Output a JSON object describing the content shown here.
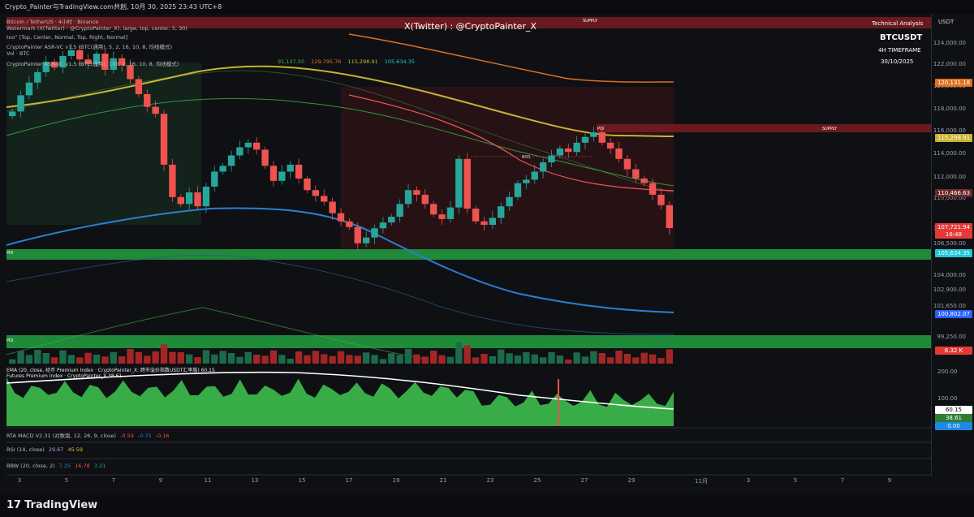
{
  "window_title": "Crypto_Painter与TradingView.com共創, 10月 30, 2025 23:43 UTC+8",
  "watermark": "X(Twitter) : @CryptoPainter_X",
  "header_right": {
    "line1": "Technical Analysis",
    "symbol": "BTCUSDT",
    "timeframe": "4H TIMEFRAME",
    "date": "30/10/2025"
  },
  "legend_lines": [
    "Bitcoin / TetherUS · 4小时 · Binance",
    "Watermark (X(Twitter) : @CryptoPainter_X), large, top, center, 5, 30)",
    "too\" [Top, Center, Normal, Top, Right, Normal]",
    "CryptoPainter ASR-VC v1.5 (BTC(通用), 5, 2, 16, 10, 8, 均线模式)",
    "Vol · BTC",
    "CryptoPainter ASR-VC v1.5 (BTC(通用), 100, 2, 16, 10, 8, 均线模式)"
  ],
  "legend_values": [
    "91,137.50",
    "129,795.76",
    "115,298.91",
    "105,634.35"
  ],
  "axis_currency": "USDT",
  "footer_brand": "TradingView",
  "zones": {
    "supply": "SUPPLY",
    "poi": "POI",
    "bos": "BOS"
  },
  "colors": {
    "up": "#26a69a",
    "down": "#ef5350",
    "ma_yellow": "#c9b233",
    "ma_orange": "#e0701e",
    "ma_green": "#4caf50",
    "ma_blue": "#2a7fd4",
    "panel_green": "#3bb54a"
  },
  "indicators": [
    {
      "text": "RTA MACD V2.31 (对数版, 12, 26, 9, close)",
      "values": [
        "-0.59",
        "-0.75",
        "-0.16"
      ]
    },
    {
      "text": "RSI (14, close)",
      "values": [
        "29.67",
        "45.59"
      ]
    },
    {
      "text": "BBW (20, close, 2)",
      "values": [
        "7.25",
        "16.78",
        "3.21"
      ]
    }
  ],
  "premium_panel": {
    "label1": "EMA (20, close, 经币 Premium Index · CryptoPainter_X: 跨市溢价指数USDT汇率版) 60.15",
    "label2": "Futures Premium Index · CryptoPainter_X 38.61",
    "ticks": [
      "200.00",
      "100.00"
    ],
    "tags": [
      "60.15",
      "38.61",
      "0.00"
    ]
  },
  "volume_tag": "6.32 K",
  "chart_data": {
    "type": "candlestick",
    "symbol": "BTCUSDT",
    "timeframe": "4H",
    "y_ticks": [
      "124,000.00",
      "122,000.00",
      "120,000.00",
      "118,000.00",
      "116,000.00",
      "114,000.00",
      "112,000.00",
      "110,000.00",
      "108,000.00",
      "106,500.00",
      "104,000.00",
      "102,900.00",
      "101,650.00",
      "99,250.00"
    ],
    "x_ticks": [
      "3",
      "5",
      "7",
      "9",
      "11",
      "13",
      "15",
      "17",
      "19",
      "21",
      "23",
      "25",
      "27",
      "29",
      "11月",
      "3",
      "5",
      "7",
      "9"
    ],
    "price_tags": [
      {
        "label": "120,131.18",
        "color": "#e0701e"
      },
      {
        "label": "115,298.91",
        "color": "#c9b233"
      },
      {
        "label": "110,466.63",
        "color": "#6b2a2a"
      },
      {
        "label": "107,721.94",
        "sub": "16:48",
        "color": "#e53935"
      },
      {
        "label": "105,634.35",
        "color": "#1ec8d8"
      },
      {
        "label": "100,802.07",
        "color": "#2962ff"
      }
    ],
    "closes": [
      117800,
      119200,
      120300,
      121200,
      122100,
      121600,
      122600,
      123100,
      122300,
      121900,
      122800,
      121400,
      122400,
      121800,
      120600,
      119300,
      118200,
      117600,
      113200,
      110400,
      109800,
      110800,
      109600,
      111300,
      112600,
      113100,
      114000,
      114700,
      115100,
      114500,
      113100,
      111800,
      112600,
      113200,
      112000,
      111000,
      110500,
      110000,
      109000,
      108300,
      107800,
      106400,
      106900,
      107700,
      108200,
      108700,
      109800,
      111000,
      110600,
      109800,
      108900,
      108500,
      109500,
      113700,
      109400,
      108300,
      108000,
      108600,
      109600,
      110400,
      111600,
      111900,
      112600,
      113400,
      114000,
      114600,
      114300,
      115100,
      115600,
      116000,
      115100,
      114600,
      113700,
      112800,
      112000,
      111600,
      110600,
      109700,
      107720
    ]
  }
}
